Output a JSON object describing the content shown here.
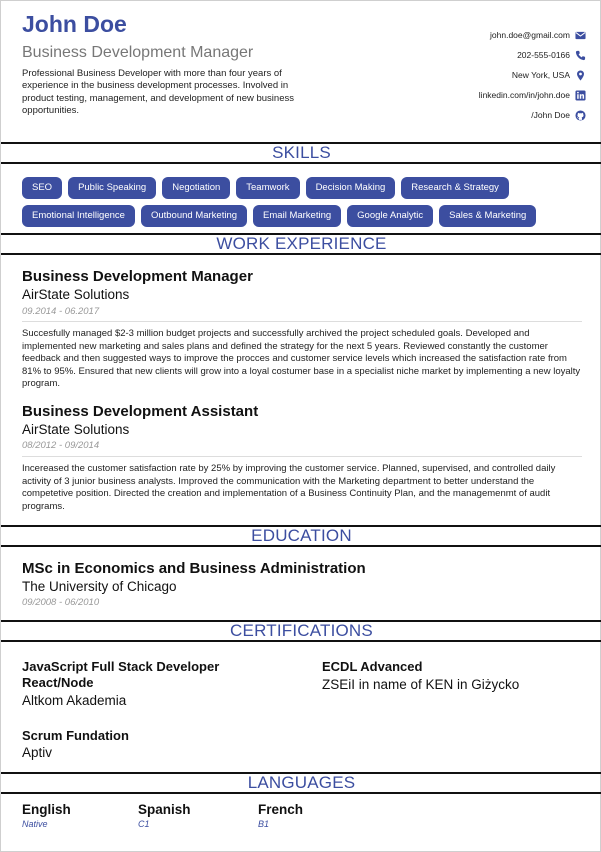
{
  "header": {
    "name": "John Doe",
    "title": "Business Development Manager",
    "summary": "Professional Business Developer with more than four years of experience in the business development processes. Involved in product testing, management, and development of new business opportunities."
  },
  "contacts": [
    {
      "text": "john.doe@gmail.com",
      "icon": "envelope-icon"
    },
    {
      "text": "202-555-0166",
      "icon": "phone-icon"
    },
    {
      "text": "New York, USA",
      "icon": "location-pin-icon"
    },
    {
      "text": "linkedin.com/in/john.doe",
      "icon": "linkedin-icon"
    },
    {
      "text": "/John Doe",
      "icon": "github-icon"
    }
  ],
  "sections": {
    "skills": "SKILLS",
    "work": "WORK EXPERIENCE",
    "education": "EDUCATION",
    "certifications": "CERTIFICATIONS",
    "languages": "LANGUAGES"
  },
  "skills": [
    "SEO",
    "Public Speaking",
    "Negotiation",
    "Teamwork",
    "Decision Making",
    "Research & Strategy",
    "Emotional Intelligence",
    "Outbound Marketing",
    "Email Marketing",
    "Google Analytic",
    "Sales & Marketing"
  ],
  "work": [
    {
      "role": "Business Development Manager",
      "company": "AirState Solutions",
      "dates": "09.2014 - 06.2017",
      "description": "Succesfully managed $2-3 million budget projects and successfully archived the project scheduled goals. Developed and implemented new marketing and sales plans and defined the strategy for the next 5 years. Reviewed constantly the customer feedback and then suggested ways to improve the procces and customer service levels which increased the satisfaction rate from 81% to 95%. Ensured that new clients will grow into a loyal costumer base in a specialist niche market by implementing a new loyalty program."
    },
    {
      "role": "Business Development Assistant",
      "company": "AirState Solutions",
      "dates": "08/2012 - 09/2014",
      "description": "Incereased the customer satisfaction rate by 25% by improving the customer service. Planned, supervised, and controlled daily activity of 3 junior business analysts. Improved the communication with the Marketing department to better understand the competetive position. Directed the creation and implementation of a Business Continuity Plan, and the managemenmt of audit programs."
    }
  ],
  "education": {
    "degree": "MSc in Economics and Business Administration",
    "school": "The University of Chicago",
    "dates": "09/2008 - 06/2010"
  },
  "certifications": [
    {
      "title": "JavaScript Full Stack Developer React/Node",
      "org": "Altkom Akademia"
    },
    {
      "title": "ECDL Advanced",
      "org": "ZSEiI in name of KEN in Giżycko"
    },
    {
      "title": "Scrum Fundation",
      "org": "Aptiv"
    }
  ],
  "languages": [
    {
      "name": "English",
      "level": "Native"
    },
    {
      "name": "Spanish",
      "level": "C1"
    },
    {
      "name": "French",
      "level": "B1"
    }
  ],
  "colors": {
    "accent": "#3c4ea0",
    "muted": "#999999"
  }
}
